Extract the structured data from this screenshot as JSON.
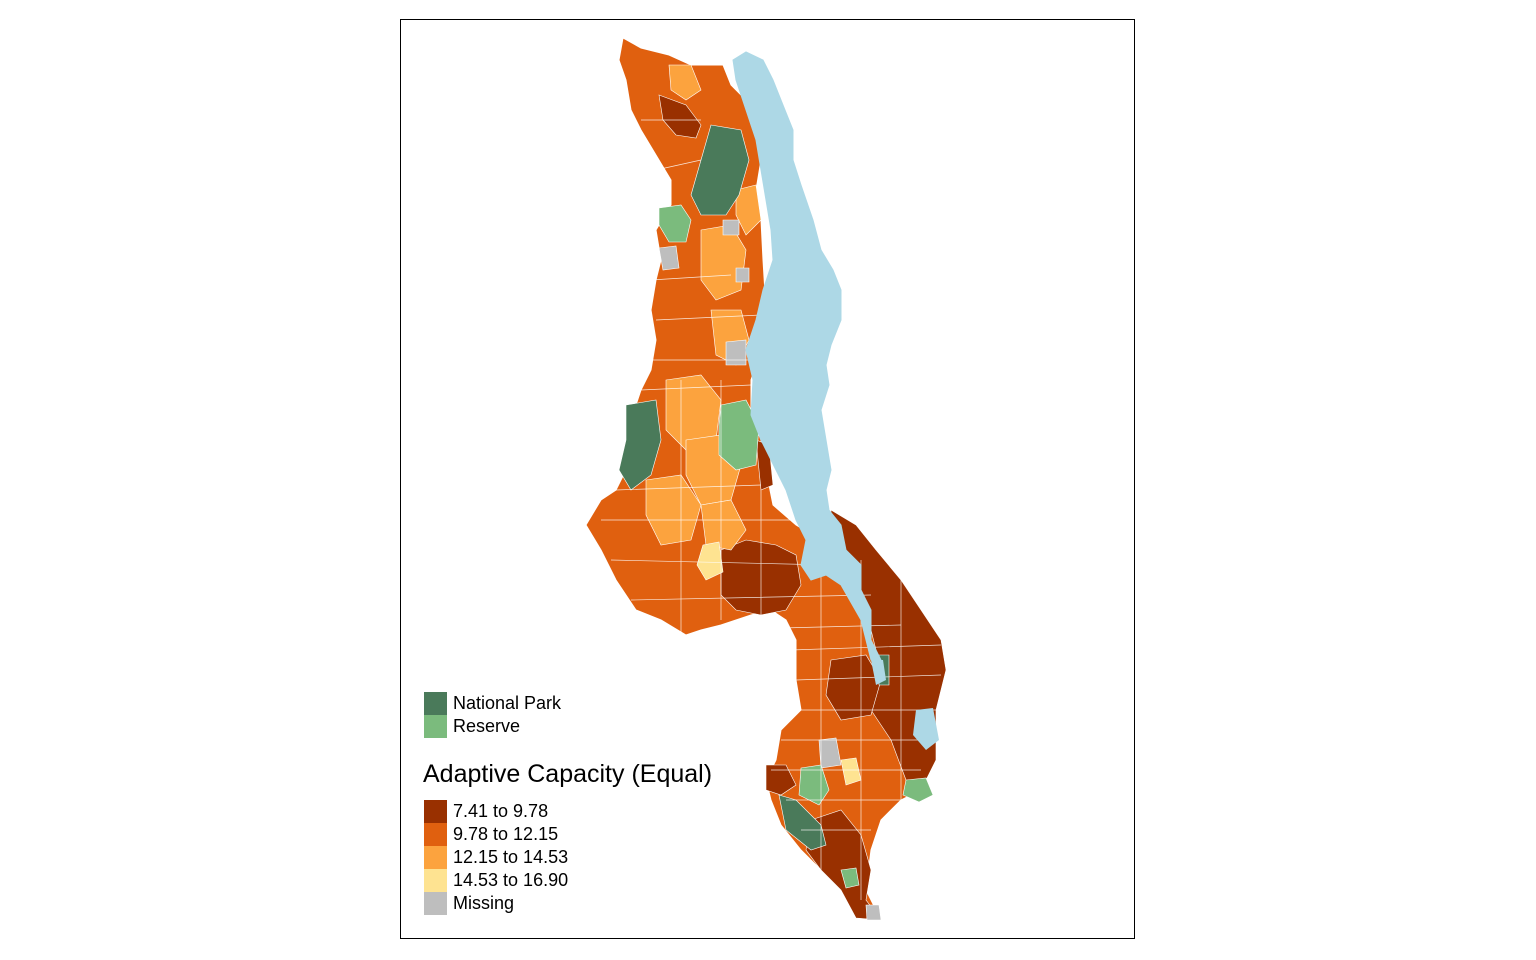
{
  "map": {
    "legend_title": "Adaptive Capacity (Equal)",
    "protected_areas": [
      {
        "label": "National Park",
        "color": "#4a7a5a"
      },
      {
        "label": "Reserve",
        "color": "#7bbb7d"
      }
    ],
    "classes": [
      {
        "label": "7.41 to 9.78",
        "color": "#993000"
      },
      {
        "label": "9.78 to 12.15",
        "color": "#e0600f"
      },
      {
        "label": "12.15 to 14.53",
        "color": "#fca33e"
      },
      {
        "label": "14.53 to 16.90",
        "color": "#fee391"
      },
      {
        "label": "Missing",
        "color": "#bebebe"
      }
    ],
    "lake_color": "#add8e6"
  }
}
